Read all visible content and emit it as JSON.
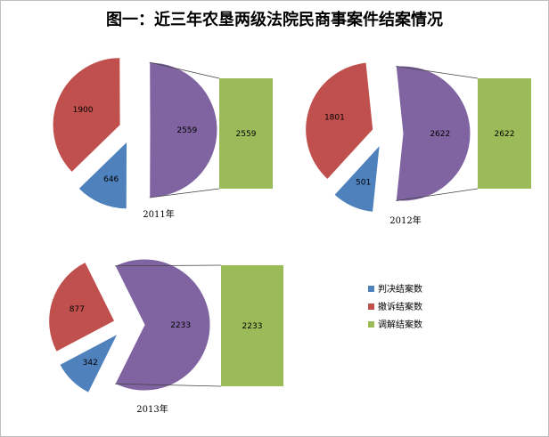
{
  "title": "图一：近三年农垦两级法院民商事案件结案情况",
  "colors": {
    "judgment": "#4f81bd",
    "withdrawal": "#c0504d",
    "mediation": "#8064a2",
    "mediation_bar": "#9bbb59",
    "connector": "#404040"
  },
  "legend": [
    {
      "label": "判决结案数",
      "color": "#4f81bd"
    },
    {
      "label": "撤诉结案数",
      "color": "#c0504d"
    },
    {
      "label": "调解结案数",
      "color": "#9bbb59"
    }
  ],
  "chart_data": [
    {
      "type": "pie",
      "title": "2011年",
      "categories": [
        "判决结案数",
        "撤诉结案数",
        "调解结案数"
      ],
      "values": [
        646,
        1900,
        2559
      ],
      "bar_value": 2559
    },
    {
      "type": "pie",
      "title": "2012年",
      "categories": [
        "判决结案数",
        "撤诉结案数",
        "调解结案数"
      ],
      "values": [
        501,
        1801,
        2622
      ],
      "bar_value": 2622
    },
    {
      "type": "pie",
      "title": "2013年",
      "categories": [
        "判决结案数",
        "撤诉结案数",
        "调解结案数"
      ],
      "values": [
        342,
        877,
        2233
      ],
      "bar_value": 2233
    }
  ]
}
